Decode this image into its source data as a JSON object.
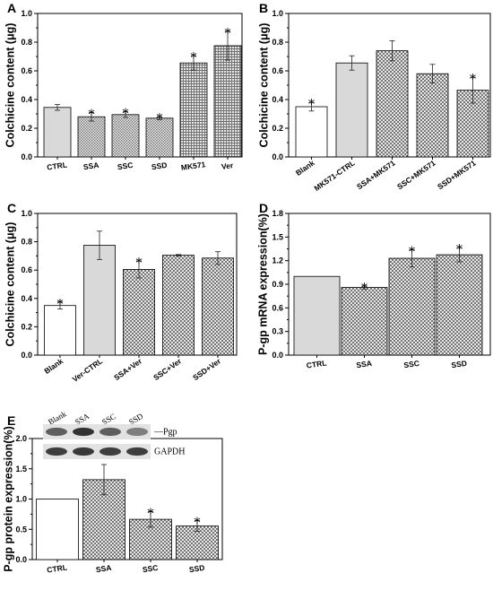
{
  "colors": {
    "bar_border": "#000000",
    "light_gray": "#d9d9d9",
    "white": "#ffffff"
  },
  "blot": {
    "lanes": [
      "Blank",
      "SSA",
      "SSC",
      "SSD"
    ],
    "labels": [
      "Pgp",
      "GAPDH"
    ],
    "band_intensity": {
      "Pgp": [
        0.75,
        0.95,
        0.75,
        0.6
      ],
      "GAPDH": [
        0.9,
        0.92,
        0.9,
        0.9
      ]
    }
  },
  "chart_data": [
    {
      "panel": "A",
      "type": "bar",
      "ylabel": "Colchicine content (μg)",
      "ylim": [
        0,
        1.0
      ],
      "yticks": [
        "0.0",
        "0.2",
        "0.4",
        "0.6",
        "0.8",
        "1.0"
      ],
      "categories": [
        "CTRL",
        "SSA",
        "SSC",
        "SSD",
        "MK571",
        "Ver"
      ],
      "values": [
        0.345,
        0.28,
        0.295,
        0.27,
        0.655,
        0.775
      ],
      "errors": [
        0.02,
        0.03,
        0.02,
        0.01,
        0.05,
        0.1
      ],
      "significant": [
        false,
        true,
        true,
        true,
        true,
        true
      ],
      "fills": [
        "gray",
        "dots",
        "dots",
        "dots",
        "grid",
        "grid"
      ]
    },
    {
      "panel": "B",
      "type": "bar",
      "ylabel": "Colchicine content (μg)",
      "ylim": [
        0,
        1.0
      ],
      "yticks": [
        "0.0",
        "0.2",
        "0.4",
        "0.6",
        "0.8",
        "1.0"
      ],
      "categories": [
        "Blank",
        "MK571-CTRL",
        "SSA+MK571",
        "SSC+MK571",
        "SSD+MK571"
      ],
      "values": [
        0.35,
        0.655,
        0.74,
        0.58,
        0.465
      ],
      "errors": [
        0.03,
        0.05,
        0.07,
        0.065,
        0.09
      ],
      "significant": [
        true,
        false,
        false,
        false,
        true
      ],
      "fills": [
        "white",
        "gray",
        "cross",
        "cross",
        "cross"
      ]
    },
    {
      "panel": "C",
      "type": "bar",
      "ylabel": "Colchicine content (μg)",
      "ylim": [
        0,
        1.0
      ],
      "yticks": [
        "0.0",
        "0.2",
        "0.4",
        "0.6",
        "0.8",
        "1.0"
      ],
      "categories": [
        "Blank",
        "Ver-CTRL",
        "SSA+Ver",
        "SSC+Ver",
        "SSD+Ver"
      ],
      "values": [
        0.35,
        0.775,
        0.605,
        0.705,
        0.685
      ],
      "errors": [
        0.025,
        0.1,
        0.06,
        0.005,
        0.045
      ],
      "significant": [
        true,
        false,
        true,
        false,
        false
      ],
      "fills": [
        "white",
        "gray",
        "cross",
        "cross",
        "cross"
      ]
    },
    {
      "panel": "D",
      "type": "bar",
      "ylabel": "P-gp mRNA expression(%)",
      "ylim": [
        0,
        1.8
      ],
      "yticks": [
        "0.0",
        "0.3",
        "0.6",
        "0.9",
        "1.2",
        "1.5",
        "1.8"
      ],
      "categories": [
        "CTRL",
        "SSA",
        "SSC",
        "SSD"
      ],
      "values": [
        1.0,
        0.86,
        1.23,
        1.275
      ],
      "errors": [
        0.0,
        0.02,
        0.11,
        0.09
      ],
      "significant": [
        false,
        true,
        true,
        true
      ],
      "fills": [
        "gray",
        "cross",
        "cross",
        "cross"
      ]
    },
    {
      "panel": "E",
      "type": "bar",
      "ylabel": "P-gp protein  expression(%)",
      "ylim": [
        0,
        2.0
      ],
      "yticks": [
        "0.0",
        "0.5",
        "1.0",
        "1.5",
        "2.0"
      ],
      "categories": [
        "CTRL",
        "SSA",
        "SSC",
        "SSD"
      ],
      "values": [
        1.0,
        1.32,
        0.665,
        0.555
      ],
      "errors": [
        0.0,
        0.25,
        0.13,
        0.09
      ],
      "significant": [
        false,
        false,
        true,
        true
      ],
      "fills": [
        "white",
        "cross",
        "cross",
        "cross"
      ]
    }
  ]
}
